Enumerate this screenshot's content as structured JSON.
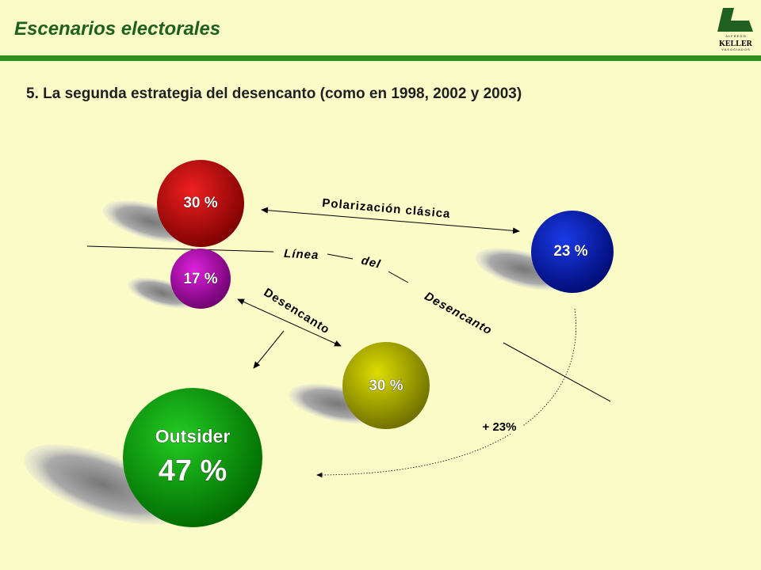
{
  "header": {
    "title": "Escenarios electorales",
    "logo": {
      "top": "A L F R E D O",
      "name": "KELLER",
      "bottom": "Y  A S O C I A D O S"
    }
  },
  "subtitle": "5. La segunda estrategia del desencanto (como en 1998, 2002 y 2003)",
  "nodes": [
    {
      "label": "30 %"
    },
    {
      "label": "17 %"
    },
    {
      "label": "23 %"
    },
    {
      "label": "30 %"
    },
    {
      "name": "Outsider",
      "label": "47 %"
    }
  ],
  "labels": {
    "polarization": "Polarización clásica",
    "line": [
      "Línea",
      "del",
      "Desencanto"
    ],
    "disenchantment": "Desencanto",
    "transfer": "+ 23%"
  }
}
